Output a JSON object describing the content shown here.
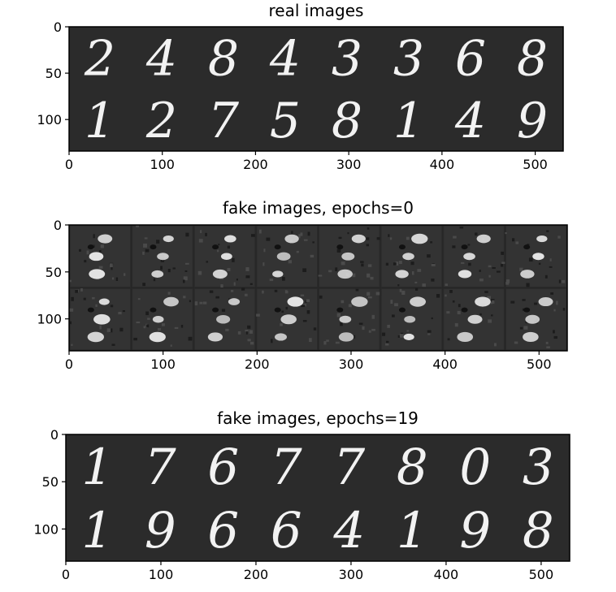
{
  "chart_data": [
    {
      "type": "image",
      "title": "real images",
      "xlim": [
        0,
        530
      ],
      "ylim": [
        0,
        134
      ],
      "x_ticks": [
        0,
        100,
        200,
        300,
        400,
        500
      ],
      "y_ticks": [
        0,
        50,
        100
      ],
      "grid": false,
      "cells": [
        "2",
        "4",
        "8",
        "4",
        "3",
        "3",
        "6",
        "8",
        "1",
        "2",
        "7",
        "5",
        "8",
        "1",
        "4",
        "9"
      ]
    },
    {
      "type": "image",
      "title": "fake images,  epochs=0",
      "xlim": [
        0,
        530
      ],
      "ylim": [
        0,
        134
      ],
      "x_ticks": [
        0,
        100,
        200,
        300,
        400,
        500
      ],
      "y_ticks": [
        0,
        50,
        100
      ],
      "grid": false,
      "cells": []
    },
    {
      "type": "image",
      "title": "fake images,  epochs=19",
      "xlim": [
        0,
        530
      ],
      "ylim": [
        0,
        134
      ],
      "x_ticks": [
        0,
        100,
        200,
        300,
        400,
        500
      ],
      "y_ticks": [
        0,
        50,
        100
      ],
      "grid": false,
      "cells": [
        "1",
        "7",
        "6",
        "7",
        "7",
        "8",
        "0",
        "3",
        "1",
        "9",
        "6",
        "6",
        "4",
        "1",
        "9",
        "8"
      ]
    }
  ],
  "colors": {
    "image_background": "#2b2b2b",
    "digit": "#f2f2f2",
    "noise_background": "#262626"
  }
}
